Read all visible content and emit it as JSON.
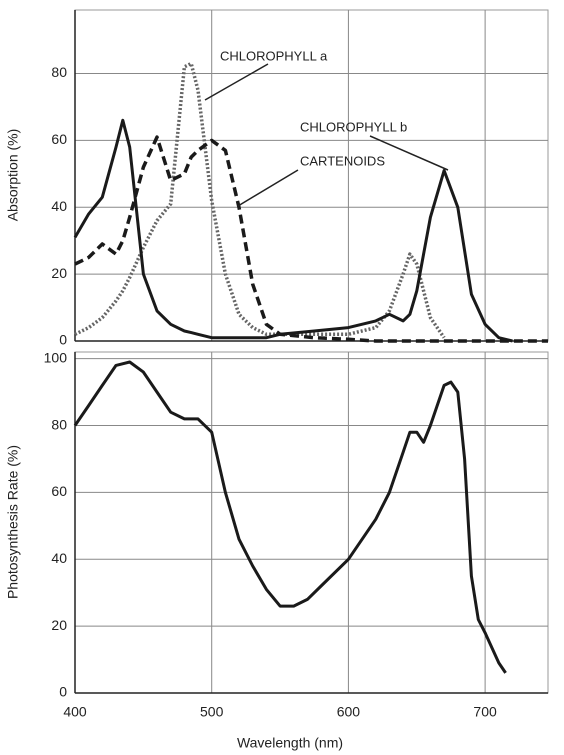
{
  "chart_data": [
    {
      "type": "line",
      "y_label": "Absorption (%)",
      "x": [
        400,
        410,
        420,
        430,
        435,
        440,
        450,
        460,
        470,
        480,
        485,
        490,
        500,
        510,
        520,
        530,
        540,
        550,
        575,
        600,
        620,
        630,
        640,
        645,
        650,
        660,
        670,
        680,
        690,
        700,
        710,
        720,
        746
      ],
      "xlim": [
        400,
        746
      ],
      "ylim": [
        0,
        99
      ],
      "yticks": [
        0,
        20,
        40,
        60,
        80
      ],
      "grid": true,
      "series": [
        {
          "name": "CHLOROPHYLL a",
          "color": "#666666",
          "style": "dotted",
          "values": [
            2,
            4,
            7,
            12,
            15,
            19,
            28,
            36,
            41,
            82,
            83,
            75,
            42,
            20,
            8,
            4,
            2,
            2,
            2,
            2,
            4,
            9,
            20,
            26,
            23,
            7,
            1,
            null,
            null,
            null,
            null,
            null,
            null
          ]
        },
        {
          "name": "CHLOROPHYLL b",
          "color": "#1a1a1a",
          "style": "solid",
          "values": [
            31,
            38,
            43,
            58,
            66,
            58,
            20,
            9,
            5,
            3,
            2.5,
            2,
            1,
            1,
            1,
            1,
            1,
            2,
            3,
            4,
            6,
            8,
            6,
            8,
            15,
            37,
            51,
            40,
            14,
            5,
            1,
            0,
            null
          ]
        },
        {
          "name": "CARTENOIDS",
          "color": "#1a1a1a",
          "style": "dashed",
          "values": [
            23,
            25,
            29,
            26,
            30,
            37,
            52,
            61,
            48,
            50,
            55,
            57,
            60,
            57,
            40,
            17,
            5,
            2,
            1,
            0.5,
            0,
            0,
            0,
            0,
            0,
            0,
            0,
            0,
            0,
            0,
            0,
            0,
            0
          ]
        }
      ]
    },
    {
      "type": "line",
      "x_label": "Wavelength (nm)",
      "y_label": "Photosynthesis Rate (%)",
      "x": [
        400,
        410,
        420,
        430,
        440,
        450,
        460,
        470,
        480,
        490,
        500,
        510,
        520,
        530,
        540,
        550,
        560,
        570,
        580,
        600,
        620,
        630,
        640,
        645,
        650,
        655,
        660,
        670,
        675,
        680,
        685,
        690,
        695,
        700,
        710,
        715
      ],
      "xlim": [
        400,
        746
      ],
      "ylim": [
        0,
        102
      ],
      "xticks": [
        400,
        500,
        600,
        700
      ],
      "yticks": [
        0,
        20,
        40,
        60,
        80,
        100
      ],
      "grid": true,
      "series": [
        {
          "color": "#1a1a1a",
          "style": "solid",
          "values": [
            80,
            86,
            92,
            98,
            99,
            96,
            90,
            84,
            82,
            82,
            78,
            60,
            46,
            38,
            31,
            26,
            26,
            28,
            32,
            40,
            52,
            60,
            72,
            78,
            78,
            75,
            80,
            92,
            93,
            90,
            70,
            35,
            22,
            18,
            9,
            6
          ]
        }
      ]
    }
  ]
}
